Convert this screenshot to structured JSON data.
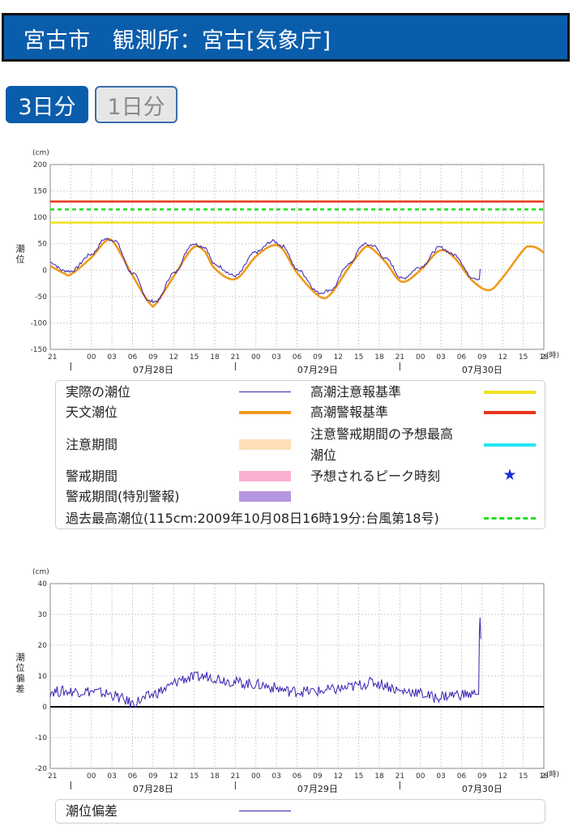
{
  "header": {
    "title": "宮古市　観測所：宮古[気象庁]"
  },
  "tabs": [
    {
      "label": "3日分",
      "active": true
    },
    {
      "label": "1日分",
      "active": false
    }
  ],
  "tide_legend": {
    "items": [
      {
        "label": "実際の潮位",
        "color": "#3a1fb0",
        "style": "line"
      },
      {
        "label": "高潮注意報基準",
        "color": "#f0e020",
        "style": "thick"
      },
      {
        "label": "天文潮位",
        "color": "#f09a1a",
        "style": "thick"
      },
      {
        "label": "高潮警報基準",
        "color": "#e8361c",
        "style": "thick"
      },
      {
        "label": "注意期間",
        "color": "#fde0b8",
        "style": "band"
      },
      {
        "label": "注意警戒期間の予想最高",
        "label2": "潮位",
        "color": "#24e6f4",
        "style": "thick"
      },
      {
        "label": "警戒期間",
        "color": "#fbb0d2",
        "style": "band"
      },
      {
        "label": "予想されるピーク時刻",
        "color": "#1531d8",
        "style": "star"
      },
      {
        "label": "警戒期間(特別警報)",
        "color": "#b596e0",
        "style": "band"
      },
      {
        "label": "過去最高潮位(115cm:2009年10月08日16時19分:台風第18号)",
        "color": "#22dd22",
        "style": "dashed"
      }
    ]
  },
  "deviation_legend": {
    "items": [
      {
        "label": "潮位偏差",
        "color": "#3a1fb0",
        "style": "line"
      }
    ]
  },
  "chart_data": [
    {
      "type": "line",
      "unit": "(cm)",
      "ylabel": "潮位",
      "x_unit": "(時)",
      "ylim": [
        -150,
        200
      ],
      "yticks": [
        200,
        150,
        100,
        50,
        0,
        -50,
        -100,
        -150
      ],
      "x_tick_labels": [
        "21",
        "00",
        "03",
        "06",
        "09",
        "12",
        "15",
        "18",
        "21",
        "00",
        "03",
        "06",
        "09",
        "12",
        "15",
        "18",
        "21",
        "00",
        "03",
        "06",
        "09",
        "12",
        "15",
        "18",
        "2"
      ],
      "date_labels": [
        "07月28日",
        "07月29日",
        "07月30日"
      ],
      "grid": true,
      "reference_lines": [
        {
          "name": "高潮警報基準",
          "value": 130,
          "color": "#e8361c"
        },
        {
          "name": "過去最高潮位",
          "value": 115,
          "color": "#22dd22",
          "dashed": true
        },
        {
          "name": "高潮注意報基準",
          "value": 90,
          "color": "#f0e020"
        }
      ],
      "series": [
        {
          "name": "天文潮位",
          "color": "#f09a1a",
          "points": [
            [
              -3,
              8
            ],
            [
              -1,
              -6
            ],
            [
              0,
              -8
            ],
            [
              3,
              24
            ],
            [
              5,
              54
            ],
            [
              6.3,
              52
            ],
            [
              9,
              -10
            ],
            [
              11.5,
              -63
            ],
            [
              12.5,
              -62
            ],
            [
              15,
              -12
            ],
            [
              17.8,
              42
            ],
            [
              19.5,
              36
            ],
            [
              21,
              3
            ],
            [
              24,
              -17
            ],
            [
              27,
              26
            ],
            [
              29.5,
              47
            ],
            [
              31,
              38
            ],
            [
              33,
              -5
            ],
            [
              36.3,
              -50
            ],
            [
              38,
              -44
            ],
            [
              40.5,
              4
            ],
            [
              42.8,
              42
            ],
            [
              44,
              40
            ],
            [
              46,
              14
            ],
            [
              48.3,
              -22
            ],
            [
              51,
              0
            ],
            [
              53.8,
              37
            ],
            [
              56,
              23
            ],
            [
              58.5,
              -19
            ],
            [
              61,
              -38
            ],
            [
              63,
              -14
            ],
            [
              66,
              38
            ],
            [
              67,
              45
            ],
            [
              68,
              42
            ],
            [
              69,
              33
            ]
          ]
        },
        {
          "name": "実際の潮位",
          "color": "#3a1fb0",
          "points": [
            [
              -3,
              15
            ],
            [
              -1,
              -1
            ],
            [
              0,
              -2
            ],
            [
              3,
              30
            ],
            [
              5,
              59
            ],
            [
              6.3,
              57
            ],
            [
              9,
              -6
            ],
            [
              11.5,
              -59
            ],
            [
              12.5,
              -59
            ],
            [
              15,
              -6
            ],
            [
              17.8,
              50
            ],
            [
              19.5,
              44
            ],
            [
              21,
              10
            ],
            [
              24,
              -11
            ],
            [
              27,
              34
            ],
            [
              29.5,
              55
            ],
            [
              31,
              45
            ],
            [
              33,
              1
            ],
            [
              36.3,
              -43
            ],
            [
              38,
              -37
            ],
            [
              40.5,
              11
            ],
            [
              42.8,
              49
            ],
            [
              44,
              47
            ],
            [
              46,
              21
            ],
            [
              48.3,
              -16
            ],
            [
              51,
              6
            ],
            [
              53.8,
              43
            ],
            [
              56,
              29
            ],
            [
              58.5,
              -13
            ],
            [
              59.6,
              -17
            ],
            [
              59.7,
              0
            ],
            [
              59.8,
              2
            ]
          ]
        }
      ]
    },
    {
      "type": "line",
      "unit": "(cm)",
      "ylabel": "潮位偏差",
      "x_unit": "(時)",
      "ylim": [
        -20,
        40
      ],
      "yticks": [
        40,
        30,
        20,
        10,
        0,
        -10,
        -20
      ],
      "x_tick_labels": [
        "21",
        "00",
        "03",
        "06",
        "09",
        "12",
        "15",
        "18",
        "21",
        "00",
        "03",
        "06",
        "09",
        "12",
        "15",
        "18",
        "21",
        "00",
        "03",
        "06",
        "09",
        "12",
        "15",
        "18",
        "2"
      ],
      "date_labels": [
        "07月28日",
        "07月29日",
        "07月30日"
      ],
      "grid": true,
      "series": [
        {
          "name": "潮位偏差",
          "color": "#3a1fb0",
          "points": [
            [
              -3,
              5
            ],
            [
              0,
              5
            ],
            [
              3,
              5
            ],
            [
              6,
              4
            ],
            [
              9,
              1
            ],
            [
              11,
              3
            ],
            [
              14,
              6
            ],
            [
              16,
              9
            ],
            [
              20,
              10
            ],
            [
              24,
              8
            ],
            [
              28,
              7
            ],
            [
              32,
              5
            ],
            [
              36,
              5
            ],
            [
              40,
              6
            ],
            [
              44,
              8
            ],
            [
              46,
              7
            ],
            [
              48,
              5
            ],
            [
              50,
              5
            ],
            [
              53,
              3
            ],
            [
              56,
              4
            ],
            [
              59,
              4
            ],
            [
              59.5,
              4
            ],
            [
              59.6,
              24
            ],
            [
              59.7,
              29
            ],
            [
              59.8,
              22
            ]
          ]
        }
      ]
    }
  ]
}
